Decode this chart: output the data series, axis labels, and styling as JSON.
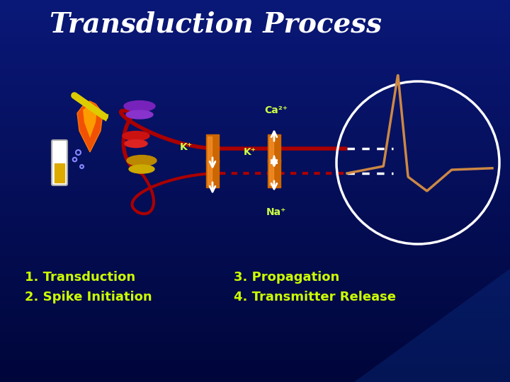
{
  "title": "Transduction Process",
  "title_color": "#FFFFFF",
  "title_fontsize": 28,
  "title_weight": "bold",
  "bg_top": "#001060",
  "bg_bottom": "#000830",
  "labels": [
    "1. Transduction",
    "2. Spike Initiation",
    "3. Propagation",
    "4. Transmitter Release"
  ],
  "label_color": "#CCFF00",
  "label_fontsize": 13,
  "ion_label_color": "#CCFF44",
  "ion_fontsize": 10,
  "channel_color": "#CC6600",
  "channel_highlight": "#FF9933",
  "axon_color": "#AA0000",
  "circle_color": "#FFFFFF",
  "ap_color": "#CC8844",
  "purple_color": "#7722BB",
  "red_disc_color": "#CC1111",
  "gold_color": "#BB8800",
  "flame_color": "#FF5500",
  "stick_color": "#DDCC00",
  "tube_color": "#FFFFFF",
  "liquid_color": "#DDAA00",
  "bubble_color": "#8888FF"
}
